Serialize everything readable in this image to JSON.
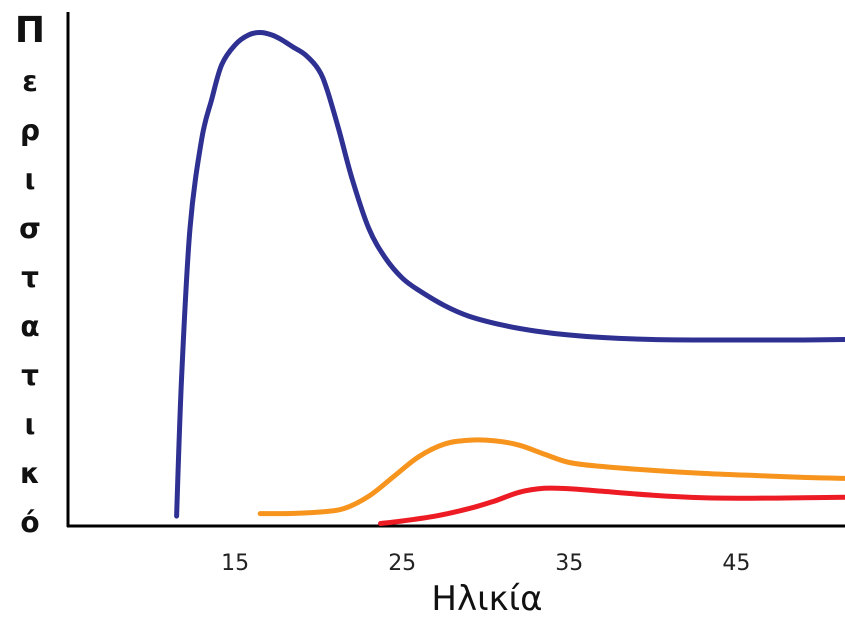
{
  "chart_data": {
    "type": "line",
    "title": "",
    "xlabel": "Ηλικία",
    "ylabel": "Περιστατικό",
    "xlim": [
      5,
      51.5
    ],
    "ylim": [
      0,
      100
    ],
    "xticks": [
      15,
      25,
      35,
      45
    ],
    "grid": false,
    "legend": "none",
    "series": [
      {
        "color": "#2e3192",
        "x": [
          11.5,
          11.8,
          12.3,
          13,
          13.6,
          14.2,
          15,
          15.8,
          16.5,
          17.2,
          17.8,
          18.5,
          19.2,
          20,
          20.5,
          21.2,
          22,
          23,
          24,
          25,
          26,
          27.5,
          29,
          31,
          33,
          35,
          37,
          40,
          43,
          46,
          49,
          51.5
        ],
        "y": [
          2,
          30,
          60,
          78,
          86,
          93,
          97,
          99,
          99.5,
          99,
          98,
          96.5,
          95,
          92,
          88,
          80,
          70,
          60,
          54,
          50,
          47.5,
          44.5,
          42.3,
          40.5,
          39.3,
          38.5,
          38,
          37.6,
          37.5,
          37.5,
          37.5,
          37.6
        ]
      },
      {
        "color": "#f7941d",
        "x": [
          16.5,
          18,
          20,
          21.5,
          23,
          24.5,
          26,
          27.5,
          29,
          30.5,
          32,
          33.5,
          35,
          37,
          40,
          43,
          46,
          49,
          51.5
        ],
        "y": [
          2.5,
          2.5,
          2.8,
          3.5,
          6,
          10,
          14,
          16.5,
          17.3,
          17.2,
          16.3,
          14.5,
          12.8,
          12,
          11.2,
          10.6,
          10.2,
          9.8,
          9.6
        ]
      },
      {
        "color": "#ed1c24",
        "x": [
          23.7,
          25,
          27,
          29,
          30.5,
          32,
          33.5,
          35,
          37,
          40,
          43,
          46,
          49,
          51.5
        ],
        "y": [
          0.5,
          1,
          2,
          3.5,
          5,
          6.8,
          7.6,
          7.5,
          7,
          6.2,
          5.7,
          5.6,
          5.7,
          5.8
        ]
      }
    ]
  }
}
